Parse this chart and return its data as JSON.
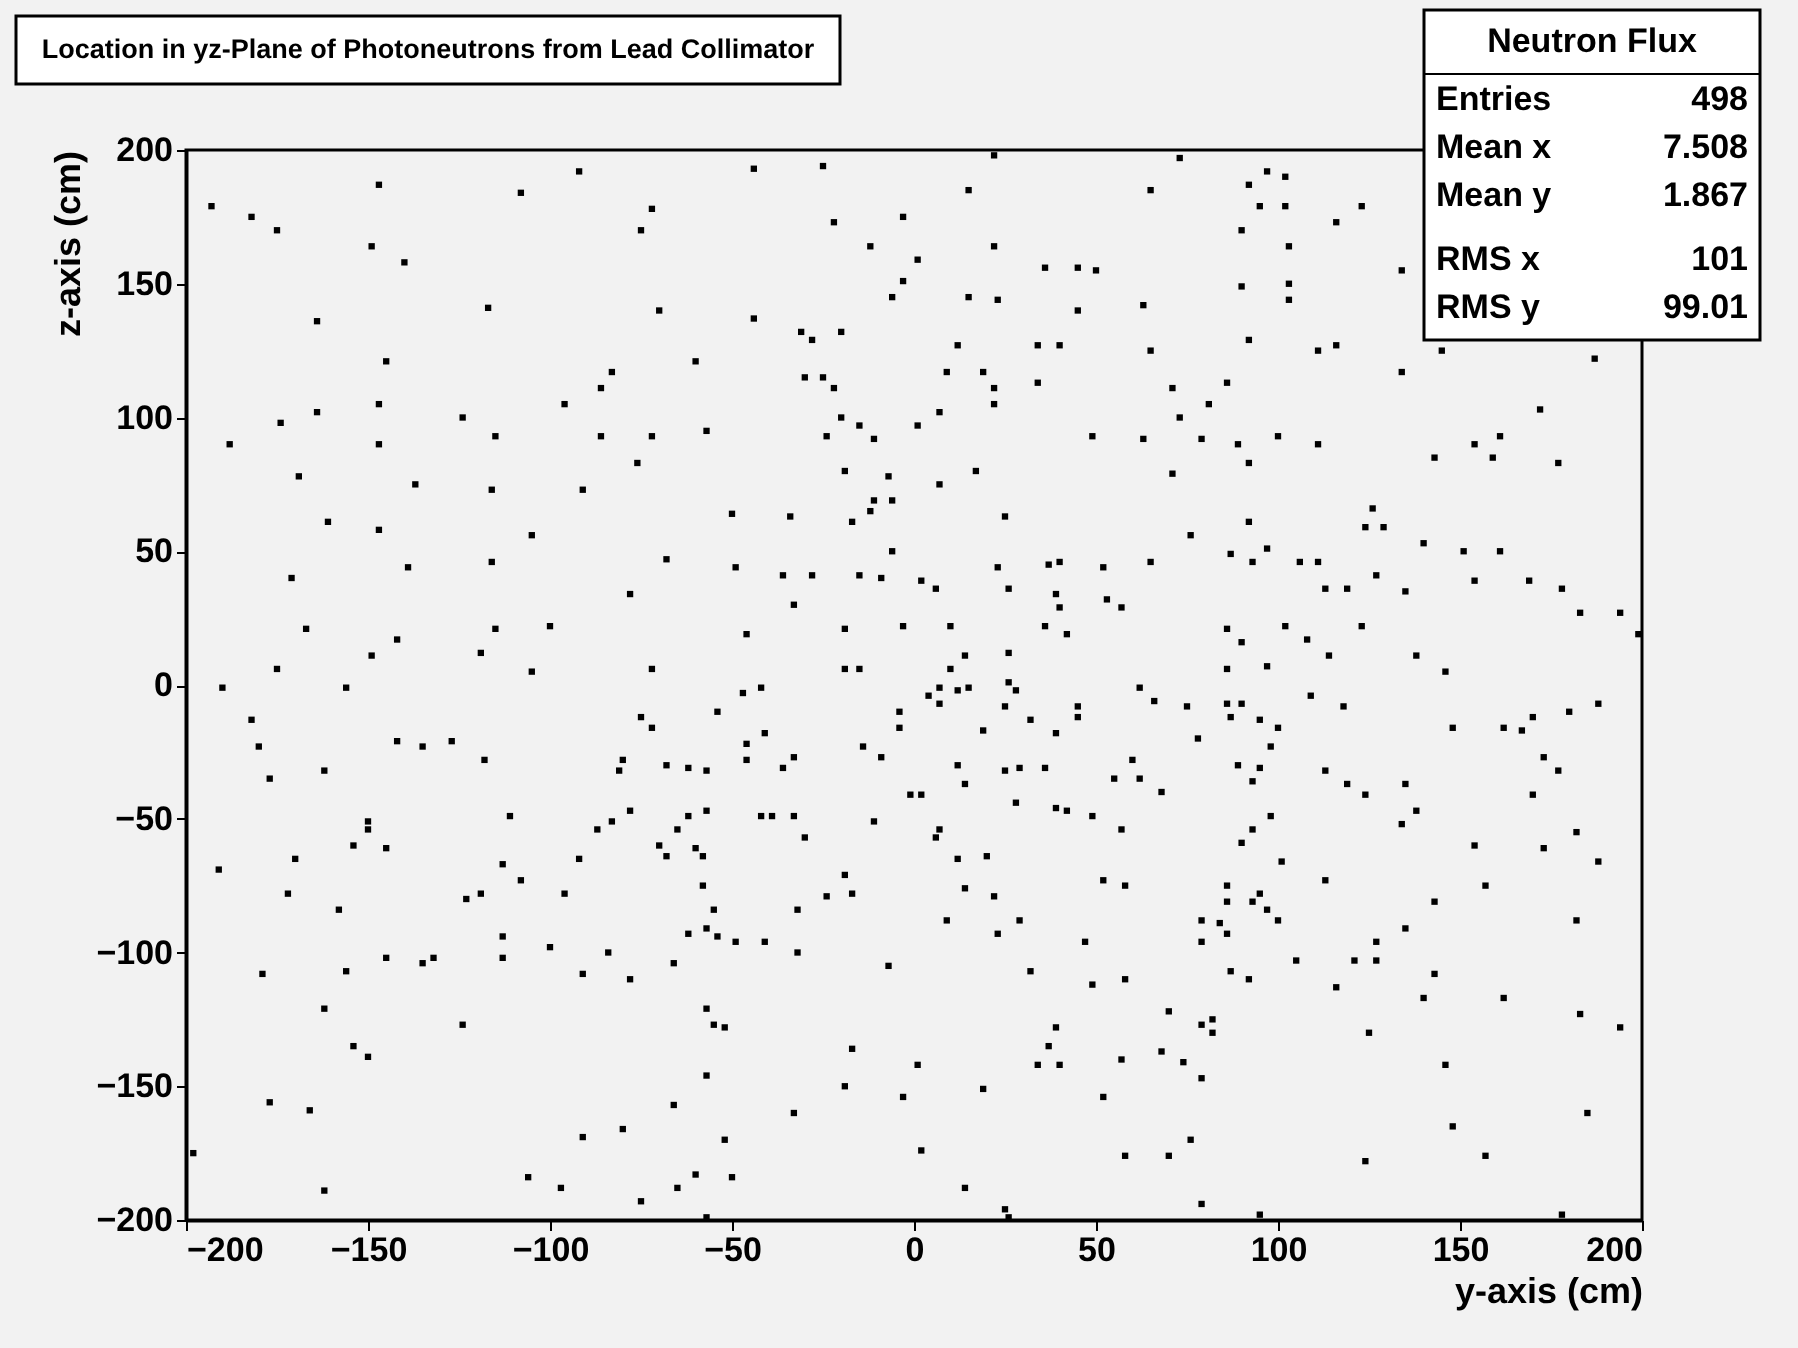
{
  "chart_data": {
    "type": "scatter",
    "title": "Location in yz-Plane of Photoneutrons from Lead Collimator",
    "xlabel": "y-axis (cm)",
    "ylabel": "z-axis (cm)",
    "annotations": [
      "Neutron Flux",
      "Entries",
      "498",
      "Mean x",
      "7.508",
      "Mean y",
      "1.867",
      "RMS x",
      "101",
      "RMS y",
      "99.01"
    ],
    "xlim": [
      -200,
      200
    ],
    "ylim": [
      -200,
      200
    ],
    "xticks": [
      -200,
      -150,
      -100,
      -50,
      0,
      50,
      100,
      150,
      200
    ],
    "yticks": [
      -200,
      -150,
      -100,
      -50,
      0,
      50,
      100,
      150,
      200
    ],
    "grid": false,
    "marker": "square",
    "series": [
      {
        "color": "#000000",
        "x": [
          -147,
          -92,
          -108,
          -193,
          -182,
          -175,
          -149,
          -140,
          -72,
          -75,
          -117,
          -70,
          -164,
          -145,
          -83,
          -86,
          -96,
          -147,
          -164,
          -174,
          -124,
          -188,
          -147,
          -115,
          -86,
          -72,
          -76,
          -137,
          -116,
          -91,
          -169,
          -161,
          -147,
          -105,
          -68,
          -171,
          -139,
          -116,
          -78,
          -167,
          -115,
          -100,
          -142,
          -149,
          -119,
          -175,
          -105,
          -72,
          -44,
          -25,
          22,
          15,
          65,
          -3,
          -22,
          -12,
          22,
          1,
          36,
          45,
          50,
          -3,
          -6,
          15,
          23,
          45,
          63,
          -44,
          -31,
          -28,
          -20,
          12,
          34,
          40,
          65,
          -60,
          -30,
          -25,
          -22,
          9,
          19,
          22,
          34,
          22,
          7,
          -20,
          -15,
          1,
          -24,
          -11,
          -57,
          49,
          63,
          -19,
          -7,
          7,
          17,
          -11,
          -6,
          -12,
          -17,
          -50,
          -34,
          25,
          -6,
          -49,
          -36,
          -28,
          -15,
          -9,
          2,
          6,
          23,
          26,
          37,
          40,
          52,
          65,
          39,
          40,
          53,
          57,
          -33,
          -46,
          -19,
          -3,
          10,
          36,
          42,
          26,
          14,
          -19,
          -15,
          10,
          73,
          97,
          102,
          92,
          95,
          102,
          123,
          90,
          116,
          103,
          134,
          90,
          103,
          103,
          92,
          111,
          116,
          145,
          187,
          134,
          71,
          86,
          81,
          73,
          79,
          89,
          100,
          111,
          92,
          172,
          154,
          161,
          143,
          159,
          177,
          71,
          126,
          124,
          129,
          92,
          76,
          87,
          93,
          97,
          106,
          111,
          140,
          151,
          161,
          127,
          113,
          119,
          135,
          154,
          169,
          178,
          183,
          194,
          199,
          86,
          90,
          102,
          108,
          123,
          114,
          138,
          86,
          97,
          146,
          -190,
          -156,
          -182,
          -180,
          -142,
          -135,
          -127,
          -118,
          -177,
          -162,
          -75,
          -72,
          -80,
          -81,
          -68,
          -150,
          -150,
          -111,
          -78,
          -83,
          -87,
          -154,
          -145,
          -170,
          -191,
          -113,
          -108,
          -92,
          -70,
          -68,
          -172,
          -158,
          -123,
          -119,
          -96,
          -113,
          -113,
          -100,
          -84,
          -78,
          -145,
          -135,
          -132,
          -179,
          -156,
          -91,
          -162,
          -124,
          -154,
          -150,
          -177,
          -166,
          -91,
          -80,
          -198,
          -162,
          -106,
          -97,
          -75,
          -42,
          -47,
          -54,
          -41,
          -46,
          -46,
          -62,
          -57,
          -36,
          -33,
          -14,
          -9,
          -4,
          -4,
          7,
          4,
          7,
          12,
          15,
          26,
          28,
          25,
          19,
          32,
          39,
          45,
          45,
          62,
          66,
          60,
          62,
          55,
          12,
          14,
          25,
          29,
          36,
          -1,
          2,
          28,
          39,
          42,
          49,
          57,
          -62,
          -57,
          -42,
          -39,
          -33,
          -30,
          -11,
          7,
          6,
          -65,
          -60,
          -58,
          -58,
          -55,
          -57,
          -62,
          -54,
          -49,
          -41,
          -19,
          -17,
          -24,
          -32,
          -32,
          12,
          20,
          14,
          22,
          9,
          23,
          29,
          52,
          58,
          47,
          -7,
          32,
          49,
          58,
          -66,
          -57,
          -55,
          -52,
          -17,
          -19,
          1,
          -3,
          19,
          39,
          37,
          34,
          40,
          57,
          52,
          -57,
          -66,
          -33,
          -52,
          2,
          58,
          -60,
          -50,
          -65,
          14,
          -57,
          25,
          26,
          75,
          86,
          90,
          87,
          95,
          100,
          109,
          118,
          78,
          98,
          89,
          95,
          93,
          113,
          119,
          124,
          135,
          148,
          162,
          167,
          170,
          180,
          188,
          173,
          177,
          170,
          68,
          98,
          93,
          90,
          101,
          113,
          134,
          138,
          154,
          173,
          182,
          188,
          157,
          143,
          86,
          86,
          95,
          93,
          97,
          100,
          79,
          84,
          86,
          79,
          87,
          92,
          105,
          121,
          127,
          127,
          135,
          116,
          143,
          140,
          162,
          182,
          70,
          79,
          82,
          82,
          125,
          183,
          194,
          68,
          74,
          79,
          146,
          185,
          148,
          76,
          70,
          124,
          157,
          79,
          95,
          178
        ],
        "values": [
          187,
          192,
          184,
          179,
          175,
          170,
          164,
          158,
          178,
          170,
          141,
          140,
          136,
          121,
          117,
          111,
          105,
          105,
          102,
          98,
          100,
          90,
          90,
          93,
          93,
          93,
          83,
          75,
          73,
          73,
          78,
          61,
          58,
          56,
          47,
          40,
          44,
          46,
          34,
          21,
          21,
          22,
          17,
          11,
          12,
          6,
          5,
          6,
          193,
          194,
          198,
          185,
          185,
          175,
          173,
          164,
          164,
          159,
          156,
          156,
          155,
          151,
          145,
          145,
          144,
          140,
          142,
          137,
          132,
          129,
          132,
          127,
          127,
          127,
          125,
          121,
          115,
          115,
          111,
          117,
          117,
          111,
          113,
          105,
          102,
          100,
          97,
          97,
          93,
          92,
          95,
          93,
          92,
          80,
          78,
          75,
          80,
          69,
          69,
          65,
          61,
          64,
          63,
          63,
          50,
          44,
          41,
          41,
          41,
          40,
          39,
          36,
          44,
          36,
          45,
          46,
          44,
          46,
          34,
          29,
          32,
          29,
          30,
          19,
          21,
          22,
          22,
          22,
          19,
          12,
          11,
          6,
          6,
          6,
          197,
          192,
          190,
          187,
          179,
          179,
          179,
          170,
          173,
          164,
          155,
          149,
          150,
          144,
          129,
          125,
          127,
          125,
          122,
          117,
          111,
          113,
          105,
          100,
          92,
          90,
          93,
          90,
          83,
          103,
          90,
          93,
          85,
          85,
          83,
          79,
          66,
          59,
          59,
          61,
          56,
          49,
          46,
          51,
          46,
          46,
          53,
          50,
          50,
          41,
          36,
          36,
          35,
          39,
          39,
          36,
          27,
          27,
          19,
          21,
          16,
          22,
          17,
          22,
          11,
          11,
          6,
          7,
          5,
          -1,
          -1,
          -13,
          -23,
          -21,
          -23,
          -21,
          -28,
          -35,
          -32,
          -12,
          -16,
          -28,
          -32,
          -30,
          -51,
          -54,
          -49,
          -47,
          -51,
          -54,
          -60,
          -61,
          -65,
          -69,
          -67,
          -73,
          -65,
          -60,
          -64,
          -78,
          -84,
          -80,
          -78,
          -78,
          -94,
          -102,
          -98,
          -100,
          -110,
          -102,
          -104,
          -102,
          -108,
          -107,
          -108,
          -121,
          -127,
          -135,
          -139,
          -156,
          -159,
          -169,
          -166,
          -175,
          -189,
          -184,
          -188,
          -193,
          -1,
          -3,
          -10,
          -18,
          -22,
          -28,
          -31,
          -32,
          -31,
          -27,
          -23,
          -27,
          -10,
          -16,
          -1,
          -4,
          -7,
          -2,
          -1,
          1,
          -2,
          -8,
          -17,
          -13,
          -18,
          -8,
          -12,
          -1,
          -6,
          -28,
          -35,
          -35,
          -30,
          -37,
          -32,
          -31,
          -31,
          -41,
          -41,
          -44,
          -46,
          -47,
          -49,
          -54,
          -49,
          -47,
          -49,
          -49,
          -49,
          -57,
          -51,
          -54,
          -57,
          -54,
          -61,
          -64,
          -75,
          -84,
          -91,
          -93,
          -94,
          -96,
          -96,
          -71,
          -78,
          -79,
          -84,
          -100,
          -65,
          -64,
          -76,
          -79,
          -88,
          -93,
          -88,
          -73,
          -75,
          -96,
          -105,
          -107,
          -112,
          -110,
          -104,
          -121,
          -127,
          -128,
          -136,
          -150,
          -142,
          -154,
          -151,
          -128,
          -135,
          -142,
          -142,
          -140,
          -154,
          -146,
          -157,
          -160,
          -170,
          -174,
          -176,
          -183,
          -184,
          -188,
          -188,
          -199,
          -196,
          -199,
          -8,
          -7,
          -7,
          -12,
          -13,
          -16,
          -4,
          -8,
          -20,
          -23,
          -30,
          -31,
          -36,
          -32,
          -37,
          -41,
          -37,
          -16,
          -16,
          -17,
          -12,
          -10,
          -7,
          -27,
          -32,
          -41,
          -40,
          -49,
          -54,
          -59,
          -66,
          -73,
          -52,
          -47,
          -60,
          -61,
          -55,
          -66,
          -75,
          -81,
          -75,
          -81,
          -78,
          -81,
          -84,
          -88,
          -88,
          -89,
          -93,
          -96,
          -107,
          -110,
          -103,
          -103,
          -103,
          -96,
          -91,
          -113,
          -108,
          -117,
          -117,
          -88,
          -122,
          -127,
          -125,
          -130,
          -130,
          -123,
          -128,
          -137,
          -141,
          -147,
          -142,
          -160,
          -165,
          -170,
          -176,
          -178,
          -176,
          -194,
          -198,
          -198
        ]
      }
    ]
  }
}
